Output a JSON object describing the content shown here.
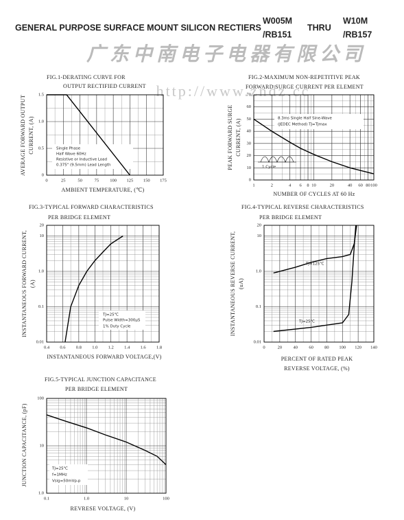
{
  "header": {
    "title": "GENERAL PURPOSE SURFACE MOUNT SILICON RECTIERS",
    "part_from": [
      "W005M",
      "/RB151"
    ],
    "thru": "THRU",
    "part_to": [
      "W10M",
      "/RB157"
    ],
    "company": "广东中南电子电器有限公司",
    "watermark": "http://www.zndz.cc"
  },
  "chart_data": [
    {
      "type": "line",
      "title": [
        "FIG.1-DERATING CURVE FOR",
        "OUTPUT RECTIFIED CURRENT"
      ],
      "x_label": [
        "AMBIENT TEMPERATURE, (℃)"
      ],
      "y_label": [
        "AVERAGE FORWARD OUTPUT",
        "CURRENT, (A)"
      ],
      "xscale": "linear",
      "yscale": "linear",
      "xlim": [
        0,
        175
      ],
      "ylim": [
        0,
        1.5
      ],
      "xticks": [
        0,
        25,
        50,
        75,
        100,
        125,
        150,
        175
      ],
      "yticks": [
        0,
        0.5,
        {
          "value": 1,
          "label": "1.0"
        },
        1.5
      ],
      "grid": true,
      "annotations": [
        "Single Phase",
        "Half Wave 60Hz",
        "Resistive or Inductive Load",
        "0.375\" (9.5mm) Lead Length"
      ],
      "series": [
        {
          "color": "#000000",
          "x": [
            0,
            30,
            125
          ],
          "values": [
            1.5,
            1.5,
            0
          ]
        }
      ]
    },
    {
      "type": "line",
      "title": [
        "FIG.2-MAXIMUM NON-REPETITIVE PEAK",
        "FORWARD SURGE CURRENT PER ELEMENT"
      ],
      "x_label": [
        "NUMBER OF CYCLES AT 60 Hz"
      ],
      "y_label": [
        "PEAK FORWARD SURGE",
        "CURRENT, (A)"
      ],
      "xscale": "log",
      "yscale": "linear",
      "xlim": [
        1,
        100
      ],
      "ylim": [
        0,
        70
      ],
      "xticks": [
        1,
        2,
        4,
        6,
        8,
        10,
        20,
        40,
        60,
        80,
        100
      ],
      "yticks": [
        0,
        10,
        20,
        30,
        40,
        50,
        60,
        70
      ],
      "grid": true,
      "annotations": [
        "8.3ms Single Half Sine-Wave",
        "(JEDEC Method)   TJ=TJmax",
        "1 Cycle"
      ],
      "series": [
        {
          "color": "#000000",
          "x": [
            1,
            2,
            4,
            6,
            10,
            20,
            40,
            100
          ],
          "values": [
            50,
            40,
            31,
            26,
            21,
            15,
            10,
            5
          ]
        }
      ]
    },
    {
      "type": "line",
      "title": [
        "FIG.3-TYPICAL FORWARD CHARACTERISTICS",
        "PER BRIDGE ELEMENT"
      ],
      "x_label": [
        "INSTANTANEOUS FORWARD VOLTAGE,(V)"
      ],
      "y_label": [
        "INSTANTANEOUS FORWARD CURRENT,",
        "(A)"
      ],
      "xscale": "linear",
      "yscale": "log",
      "xlim": [
        0.4,
        1.8
      ],
      "ylim": [
        0.01,
        20
      ],
      "xticks": [
        0.4,
        0.6,
        0.8,
        {
          "value": 1,
          "label": "1.0"
        },
        1.2,
        1.4,
        1.6,
        1.8
      ],
      "yticks": [
        0.01,
        0.1,
        {
          "value": 1,
          "label": "1.0"
        },
        10,
        20
      ],
      "grid": true,
      "annotations": [
        "TJ=25℃",
        "Pulse Width=300μS",
        "1% Duty Cycle"
      ],
      "series": [
        {
          "color": "#000000",
          "x": [
            0.63,
            0.7,
            0.8,
            0.9,
            1.0,
            1.1,
            1.2,
            1.35
          ],
          "values": [
            0.01,
            0.1,
            0.4,
            1,
            2,
            3.5,
            6,
            10
          ]
        }
      ]
    },
    {
      "type": "line",
      "title": [
        "FIG.4-TYPICAL REVERSE CHARACTERISTICS",
        "PER BRIDGE ELEMENT"
      ],
      "x_label": [
        "PERCENT OF RATED PEAK",
        "REVERSE VOLTAGE, (%)"
      ],
      "y_label": [
        "INSTANTANEOUS REVERSE CURRENT,",
        "(uA)"
      ],
      "xscale": "linear",
      "yscale": "log",
      "xlim": [
        0,
        140
      ],
      "ylim": [
        0.01,
        20
      ],
      "xticks": [
        0,
        20,
        40,
        60,
        80,
        100,
        120,
        140
      ],
      "yticks": [
        0.01,
        0.1,
        {
          "value": 1,
          "label": "1.0"
        },
        10,
        20
      ],
      "grid": true,
      "series": [
        {
          "name": "TJ=125℃",
          "color": "#000000",
          "x": [
            12,
            40,
            60,
            80,
            100,
            110,
            115,
            118
          ],
          "values": [
            0.9,
            1.3,
            1.8,
            2.3,
            2.6,
            3,
            6,
            20
          ]
        },
        {
          "name": "TJ=25℃",
          "color": "#000000",
          "x": [
            12,
            60,
            100,
            108,
            112,
            115,
            117
          ],
          "values": [
            0.02,
            0.026,
            0.035,
            0.06,
            0.5,
            5,
            20
          ]
        }
      ]
    },
    {
      "type": "line",
      "title": [
        "FIG.5-TYPICAL JUNCTION CAPACITANCE",
        "PER BRIDGE ELEMENT"
      ],
      "x_label": [
        "REVRESE VOLTAGE, (V)"
      ],
      "y_label": [
        "JUNCTION CAPACITANCE, (pF)"
      ],
      "xscale": "log",
      "yscale": "log",
      "xlim": [
        0.1,
        100
      ],
      "ylim": [
        1,
        100
      ],
      "xticks": [
        0.1,
        {
          "value": 1,
          "label": "1.0"
        },
        10,
        100
      ],
      "yticks": [
        {
          "value": 1,
          "label": "1.0"
        },
        10,
        100
      ],
      "grid": true,
      "annotations": [
        "TJ=25℃",
        "f=1MHz",
        "Vsig=50mVp-p"
      ],
      "series": [
        {
          "color": "#000000",
          "x": [
            0.1,
            0.3,
            1,
            3,
            10,
            30,
            60,
            100
          ],
          "values": [
            45,
            33,
            24,
            17,
            12,
            8,
            6,
            4
          ]
        }
      ]
    }
  ]
}
